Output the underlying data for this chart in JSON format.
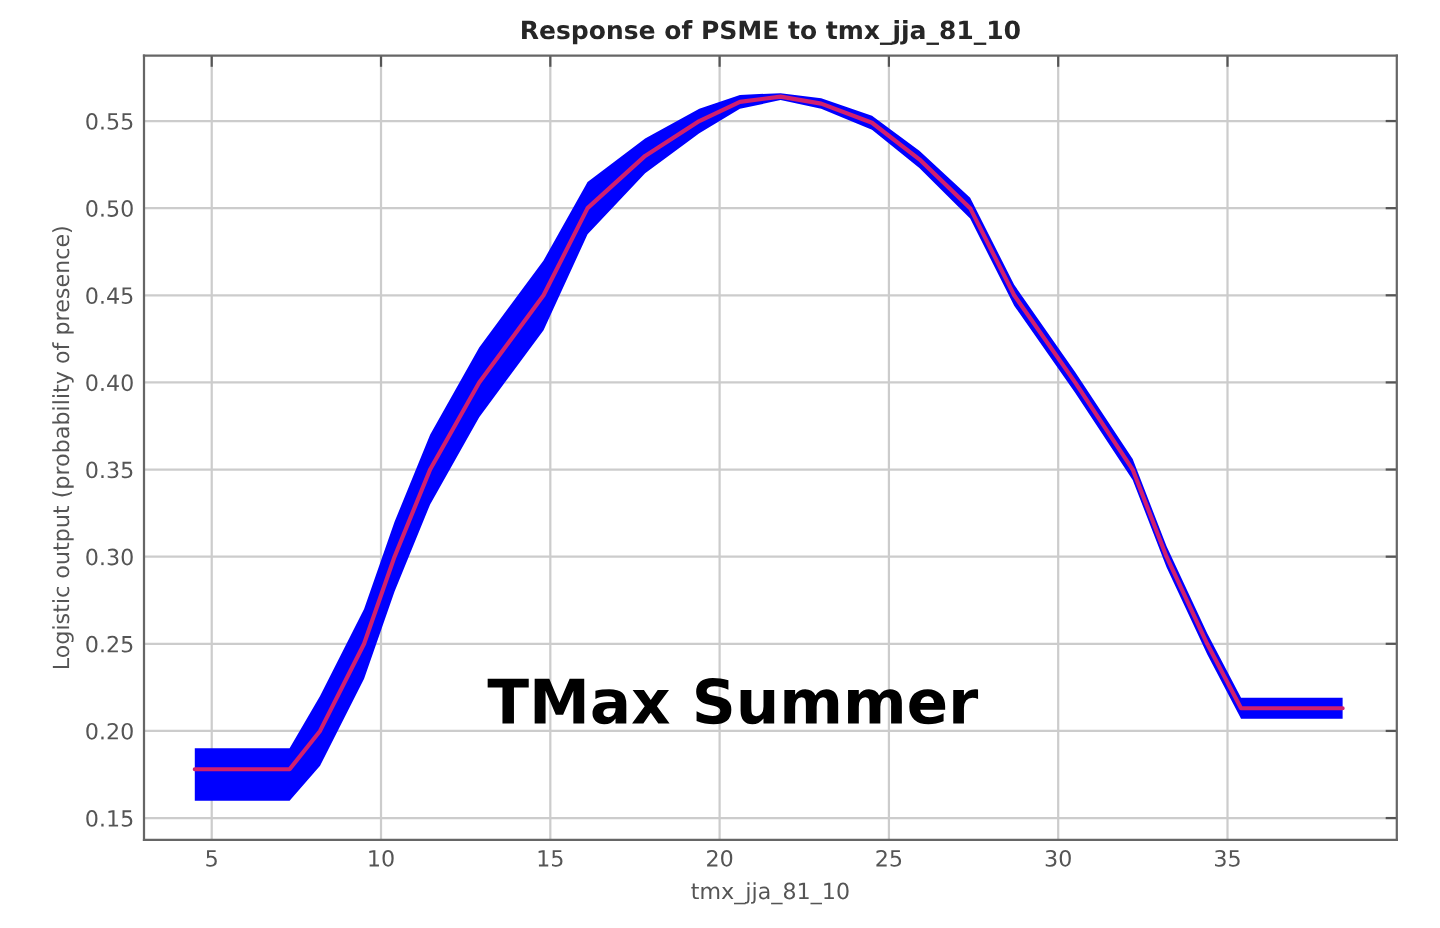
{
  "chart_data": {
    "type": "line",
    "title": "Response of PSME to tmx_jja_81_10",
    "xlabel": "tmx_jja_81_10",
    "ylabel": "Logistic output (probability of presence)",
    "annotations": [
      "TMax Summer"
    ],
    "xlim": [
      3,
      40
    ],
    "xticks": [
      5,
      10,
      15,
      20,
      25,
      30,
      35
    ],
    "ylim": [
      0.1375,
      0.5875
    ],
    "yticks": [
      {
        "value": 0.15,
        "label": "0.15"
      },
      {
        "value": 0.2,
        "label": "0.20"
      },
      {
        "value": 0.25,
        "label": "0.25"
      },
      {
        "value": 0.3,
        "label": "0.30"
      },
      {
        "value": 0.35,
        "label": "0.35"
      },
      {
        "value": 0.4,
        "label": "0.40"
      },
      {
        "value": 0.45,
        "label": "0.45"
      },
      {
        "value": 0.5,
        "label": "0.50"
      },
      {
        "value": 0.55,
        "label": "0.55"
      }
    ],
    "grid": true,
    "series": [
      {
        "color": "#d0206e",
        "x": [
          4.5,
          7.3,
          8.2,
          9.5,
          10.4,
          11.45,
          12.9,
          14.8,
          16.1,
          17.8,
          19.4,
          20.6,
          21.8,
          23.0,
          24.5,
          25.9,
          27.4,
          28.7,
          30.5,
          32.2,
          33.2,
          34.4,
          35.4,
          38.4
        ],
        "values": [
          0.178,
          0.178,
          0.2,
          0.25,
          0.3,
          0.35,
          0.4,
          0.45,
          0.5,
          0.53,
          0.55,
          0.561,
          0.564,
          0.56,
          0.549,
          0.528,
          0.5,
          0.45,
          0.4,
          0.35,
          0.3,
          0.25,
          0.213,
          0.213
        ],
        "lower": [
          0.16,
          0.16,
          0.18,
          0.23,
          0.28,
          0.33,
          0.38,
          0.43,
          0.485,
          0.52,
          0.543,
          0.557,
          0.562,
          0.557,
          0.545,
          0.523,
          0.494,
          0.444,
          0.394,
          0.344,
          0.294,
          0.244,
          0.207,
          0.207
        ],
        "upper": [
          0.19,
          0.19,
          0.22,
          0.27,
          0.32,
          0.37,
          0.42,
          0.47,
          0.515,
          0.54,
          0.557,
          0.565,
          0.566,
          0.563,
          0.553,
          0.533,
          0.506,
          0.456,
          0.406,
          0.356,
          0.306,
          0.256,
          0.219,
          0.219
        ]
      }
    ]
  }
}
